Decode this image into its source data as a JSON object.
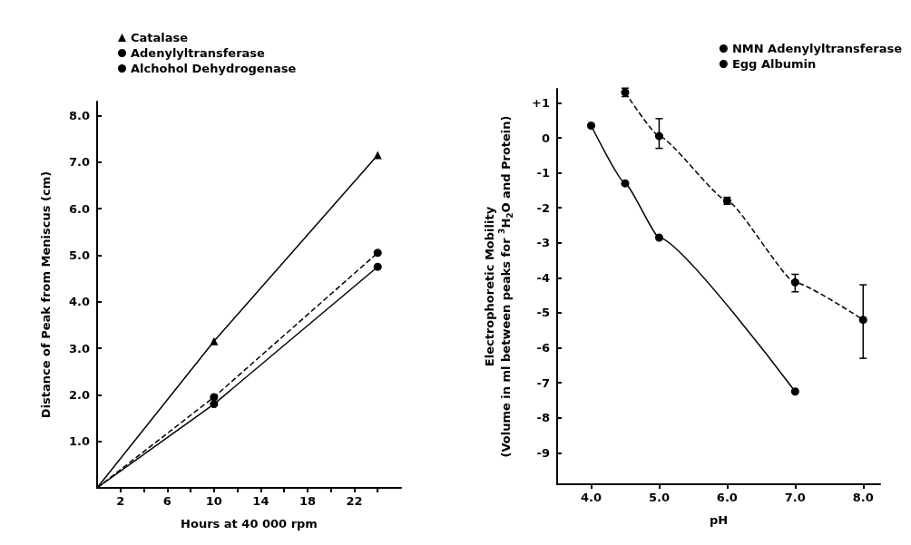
{
  "chart_data": [
    {
      "type": "line",
      "xlabel": "Hours at 40 000 rpm",
      "ylabel": "Distance of Peak from Meniscus (cm)",
      "x": [
        0,
        10,
        24
      ],
      "series": [
        {
          "name": "Catalase",
          "color": "#000000",
          "values": [
            0,
            3.15,
            7.15
          ],
          "marker": "triangle",
          "line_style": "solid"
        },
        {
          "name": "Adenylyltransferase",
          "color": "#000000",
          "values": [
            0,
            1.95,
            5.05
          ],
          "marker": "circle",
          "line_style": "dashed"
        },
        {
          "name": "Alchohol Dehydrogenase",
          "color": "#000000",
          "values": [
            0,
            1.8,
            4.75
          ],
          "marker": "circle",
          "line_style": "solid"
        }
      ],
      "xlim": [
        0,
        26
      ],
      "xticks": [
        {
          "value": 2,
          "label": "2"
        },
        {
          "value": 4,
          "label": null
        },
        {
          "value": 6,
          "label": "6"
        },
        {
          "value": 8,
          "label": null
        },
        {
          "value": 10,
          "label": "10"
        },
        {
          "value": 12,
          "label": null
        },
        {
          "value": 14,
          "label": "14"
        },
        {
          "value": 16,
          "label": null
        },
        {
          "value": 18,
          "label": "18"
        },
        {
          "value": 20,
          "label": null
        },
        {
          "value": 22,
          "label": "22"
        },
        {
          "value": 24,
          "label": null
        }
      ],
      "ylim": [
        0,
        8.3
      ],
      "yticks": [
        {
          "value": 1,
          "label": "1.0"
        },
        {
          "value": 2,
          "label": "2.0"
        },
        {
          "value": 3,
          "label": "3.0"
        },
        {
          "value": 4,
          "label": "4.0"
        },
        {
          "value": 5,
          "label": "5.0"
        },
        {
          "value": 6,
          "label": "6.0"
        },
        {
          "value": 7,
          "label": "7.0"
        },
        {
          "value": 8,
          "label": "8.0"
        }
      ],
      "grid": false,
      "legend": "top left"
    },
    {
      "type": "line",
      "xlabel": "pH",
      "ylabel": "Electrophoretic Mobility\n(Volume in ml between peaks for $^{3}$H$_{2}$O and Protein)",
      "series": [
        {
          "name": "NMN Adenylyltransferase",
          "color": "#000000",
          "x": [
            4.5,
            5.0,
            6.0,
            7.0,
            8.0
          ],
          "values": [
            1.3,
            0.05,
            -1.8,
            -4.13,
            -5.2
          ],
          "errors": [
            0.12,
            [
              -0.3,
              0.55
            ],
            0.1,
            [
              -4.4,
              -3.9
            ],
            [
              -6.3,
              -4.2
            ]
          ],
          "marker": "circle",
          "line_style": "dashed"
        },
        {
          "name": "Egg Albumin",
          "color": "#000000",
          "x": [
            4.0,
            4.5,
            5.0,
            7.0
          ],
          "values": [
            0.35,
            -1.3,
            -2.85,
            -7.25
          ],
          "marker": "circle",
          "line_style": "solid"
        }
      ],
      "xlim": [
        3.5,
        8.25
      ],
      "xticks": [
        {
          "value": 4,
          "label": "4.0"
        },
        {
          "value": 5,
          "label": "5.0"
        },
        {
          "value": 6,
          "label": "6.0"
        },
        {
          "value": 7,
          "label": "7.0"
        },
        {
          "value": 8,
          "label": "8.0"
        }
      ],
      "ylim": [
        -9.9,
        1.4
      ],
      "yticks": [
        -9,
        -8,
        -7,
        -6,
        -5,
        -4,
        -3,
        -2,
        -1,
        0,
        {
          "value": 1,
          "label": "+1"
        }
      ],
      "grid": false,
      "legend": "top right"
    }
  ]
}
